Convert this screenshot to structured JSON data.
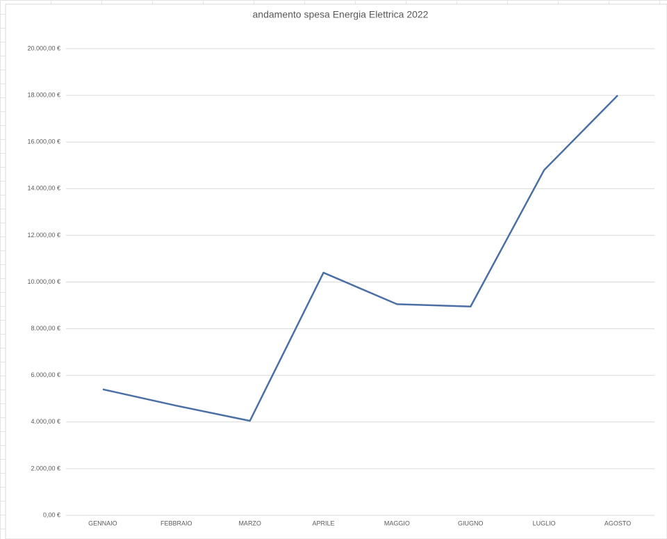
{
  "chart_data": {
    "type": "line",
    "title": "andamento spesa Energia Elettrica 2022",
    "categories": [
      "GENNAIO",
      "FEBBRAIO",
      "MARZO",
      "APRILE",
      "MAGGIO",
      "GIUGNO",
      "LUGLIO",
      "AGOSTO"
    ],
    "values": [
      5400,
      4700,
      4050,
      10400,
      9050,
      8950,
      14800,
      18000
    ],
    "color": "#4a6fa5",
    "ylim": [
      0,
      20000
    ],
    "yticks": [
      {
        "value": 0,
        "label": "0,00 €"
      },
      {
        "value": 2000,
        "label": "2.000,00 €"
      },
      {
        "value": 4000,
        "label": "4.000,00 €"
      },
      {
        "value": 6000,
        "label": "6.000,00 €"
      },
      {
        "value": 8000,
        "label": "8.000,00 €"
      },
      {
        "value": 10000,
        "label": "10.000,00 €"
      },
      {
        "value": 12000,
        "label": "12.000,00 €"
      },
      {
        "value": 14000,
        "label": "14.000,00 €"
      },
      {
        "value": 16000,
        "label": "16.000,00 €"
      },
      {
        "value": 18000,
        "label": "18.000,00 €"
      },
      {
        "value": 20000,
        "label": "20.000,00 €"
      }
    ],
    "grid": true
  }
}
